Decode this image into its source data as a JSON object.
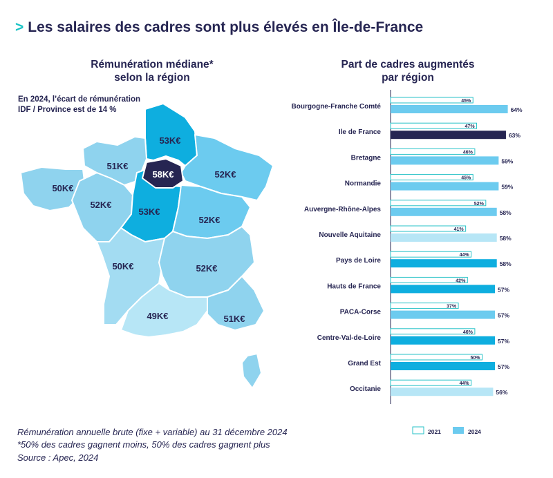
{
  "title": "Les salaires des cadres sont plus élevés en Île-de-France",
  "title_marker": ">",
  "map": {
    "title_line1": "Rémunération médiane*",
    "title_line2": "selon la région",
    "note_line1": "En 2024, l’écart de rémunération",
    "note_line2": "IDF / Province est de 14 %",
    "regions": [
      {
        "name": "Hauts de France",
        "label": "53K€",
        "color": "#0eaedf"
      },
      {
        "name": "Ile de France",
        "label": "58K€",
        "color": "#262552"
      },
      {
        "name": "Normandie",
        "label": "51K€",
        "color": "#8fd3ee"
      },
      {
        "name": "Bretagne",
        "label": "50K€",
        "color": "#8fd3ee"
      },
      {
        "name": "Pays de Loire",
        "label": "52K€",
        "color": "#8fd3ee"
      },
      {
        "name": "Centre-Val-de-Loire",
        "label": "53K€",
        "color": "#0eaedf"
      },
      {
        "name": "Grand Est",
        "label": "52K€",
        "color": "#6ccbef"
      },
      {
        "name": "Bourgogne-Franche Comté",
        "label": "52K€",
        "color": "#6ccbef"
      },
      {
        "name": "Nouvelle Aquitaine",
        "label": "50K€",
        "color": "#a3dcf2"
      },
      {
        "name": "Auvergne-Rhône-Alpes",
        "label": "52K€",
        "color": "#8fd3ee"
      },
      {
        "name": "Occitanie",
        "label": "49K€",
        "color": "#b7e6f6"
      },
      {
        "name": "PACA-Corse",
        "label": "51K€",
        "color": "#8fd3ee"
      }
    ]
  },
  "chart_data": {
    "type": "bar",
    "orientation": "horizontal",
    "title": "Part de cadres augmentés par région",
    "categories": [
      "Bourgogne-Franche Comté",
      "Ile de France",
      "Bretagne",
      "Normandie",
      "Auvergne-Rhône-Alpes",
      "Nouvelle Aquitaine",
      "Pays de Loire",
      "Hauts de France",
      "PACA-Corse",
      "Centre-Val-de-Loire",
      "Grand Est",
      "Occitanie"
    ],
    "series": [
      {
        "name": "2021",
        "values": [
          45,
          47,
          46,
          45,
          52,
          41,
          44,
          42,
          37,
          46,
          50,
          44
        ],
        "value_labels": [
          "45%",
          "47%",
          "46%",
          "45%",
          "52%",
          "41%",
          "44%",
          "42%",
          "37%",
          "46%",
          "50%",
          "44%"
        ]
      },
      {
        "name": "2024",
        "values": [
          64,
          63,
          59,
          59,
          58,
          58,
          58,
          57,
          57,
          57,
          57,
          56
        ],
        "value_labels": [
          "64%",
          "63%",
          "59%",
          "59%",
          "58%",
          "58%",
          "58%",
          "57%",
          "57%",
          "57%",
          "57%",
          "56%"
        ]
      }
    ],
    "bar_colors_2024": [
      "#6ccbef",
      "#262552",
      "#6ccbef",
      "#6ccbef",
      "#6ccbef",
      "#b7e6f6",
      "#0eaedf",
      "#0eaedf",
      "#6ccbef",
      "#0eaedf",
      "#0eaedf",
      "#b7e6f6"
    ],
    "outline_color_2021": "#26c2c7",
    "legend": {
      "position": "bottom",
      "items": [
        "2021",
        "2024"
      ],
      "colors": [
        "#ffffff",
        "#6ccbef"
      ]
    }
  },
  "footnotes": [
    "Rémunération annuelle brute (fixe + variable) au 31 décembre 2024",
    "*50% des cadres gagnent moins, 50% des cadres gagnent plus",
    "Source : Apec, 2024"
  ]
}
